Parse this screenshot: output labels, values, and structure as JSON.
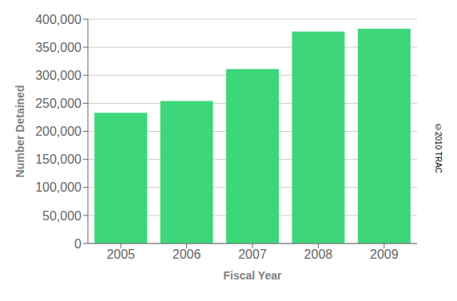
{
  "chart_data": {
    "type": "bar",
    "categories": [
      "2005",
      "2006",
      "2007",
      "2008",
      "2009"
    ],
    "values": [
      233000,
      254000,
      311000,
      378000,
      383000
    ],
    "xlabel": "Fiscal Year",
    "ylabel": "Number Detained",
    "ylim": [
      0,
      400000
    ],
    "yticks": [
      0,
      {
        "value": 50000,
        "label": "50,000"
      },
      {
        "value": 100000,
        "label": "100,000"
      },
      {
        "value": 150000,
        "label": "150,000"
      },
      {
        "value": 200000,
        "label": "200,000"
      },
      {
        "value": 250000,
        "label": "250,000"
      },
      {
        "value": 300000,
        "label": "300,000"
      },
      {
        "value": 350000,
        "label": "350,000"
      },
      {
        "value": 400000,
        "label": "400,000"
      }
    ],
    "grid": true,
    "color": "#3dd67a",
    "annotation": "©2010 TRAC"
  }
}
